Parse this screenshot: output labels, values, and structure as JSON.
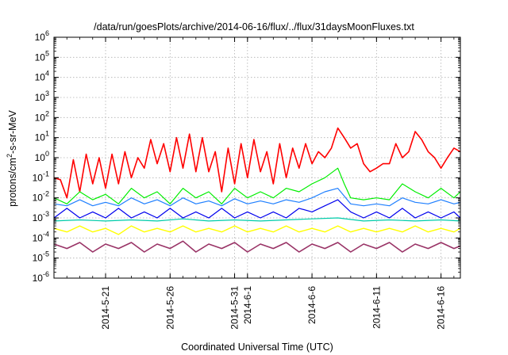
{
  "chart_data": {
    "type": "line",
    "title": "/data/run/goesPlots/archive/2014-06-16/flux/../flux/31daysMoonFluxes.txt",
    "xlabel": "Coordinated Universal Time (UTC)",
    "ylabel_parts": [
      "protons/cm",
      "2",
      "-s-sr-MeV"
    ],
    "yscale": "log",
    "ylim_exp": [
      -6,
      6
    ],
    "y_ticks": [
      {
        "base": "10",
        "exp": "-6"
      },
      {
        "base": "10",
        "exp": "-5"
      },
      {
        "base": "10",
        "exp": "-4"
      },
      {
        "base": "10",
        "exp": "-3"
      },
      {
        "base": "10",
        "exp": "-2"
      },
      {
        "base": "10",
        "exp": "-1"
      },
      {
        "base": "10",
        "exp": "0"
      },
      {
        "base": "10",
        "exp": "1"
      },
      {
        "base": "10",
        "exp": "2"
      },
      {
        "base": "10",
        "exp": "3"
      },
      {
        "base": "10",
        "exp": "4"
      },
      {
        "base": "10",
        "exp": "5"
      },
      {
        "base": "10",
        "exp": "6"
      }
    ],
    "x_domain": [
      "2014-05-17",
      "2014-06-17 12:00"
    ],
    "x_ticks": [
      {
        "date": "2014-05-21",
        "label": "2014-5-21"
      },
      {
        "date": "2014-05-26",
        "label": "2014-5-26"
      },
      {
        "date": "2014-05-31",
        "label": "2014-5-31"
      },
      {
        "date": "2014-06-01",
        "label": "2014-6-1"
      },
      {
        "date": "2014-06-06",
        "label": "2014-6-6"
      },
      {
        "date": "2014-06-11",
        "label": "2014-6-11"
      },
      {
        "date": "2014-06-16",
        "label": "2014-6-16"
      }
    ],
    "grid": true,
    "series": [
      {
        "color": "#ff0000",
        "width": 1.6,
        "points": [
          [
            "2014-05-17",
            0.1
          ],
          [
            "2014-05-17 12:00",
            0.08
          ],
          [
            "2014-05-18",
            0.01
          ],
          [
            "2014-05-18 12:00",
            0.8
          ],
          [
            "2014-05-19",
            0.02
          ],
          [
            "2014-05-19 12:00",
            1.5
          ],
          [
            "2014-05-20",
            0.05
          ],
          [
            "2014-05-20 12:00",
            1.0
          ],
          [
            "2014-05-21",
            0.03
          ],
          [
            "2014-05-21 12:00",
            1.5
          ],
          [
            "2014-05-22",
            0.05
          ],
          [
            "2014-05-22 12:00",
            2.0
          ],
          [
            "2014-05-23",
            0.1
          ],
          [
            "2014-05-23 12:00",
            1.0
          ],
          [
            "2014-05-24",
            0.3
          ],
          [
            "2014-05-24 12:00",
            8.0
          ],
          [
            "2014-05-25",
            0.5
          ],
          [
            "2014-05-25 12:00",
            5.0
          ],
          [
            "2014-05-26",
            0.2
          ],
          [
            "2014-05-26 12:00",
            10.0
          ],
          [
            "2014-05-27",
            0.3
          ],
          [
            "2014-05-27 12:00",
            15.0
          ],
          [
            "2014-05-28",
            0.2
          ],
          [
            "2014-05-28 12:00",
            10.0
          ],
          [
            "2014-05-29",
            0.2
          ],
          [
            "2014-05-29 12:00",
            2.0
          ],
          [
            "2014-05-30",
            0.02
          ],
          [
            "2014-05-30 12:00",
            3.0
          ],
          [
            "2014-05-31",
            0.05
          ],
          [
            "2014-05-31 12:00",
            5.0
          ],
          [
            "2014-06-01",
            0.1
          ],
          [
            "2014-06-01 12:00",
            8.0
          ],
          [
            "2014-06-02",
            0.2
          ],
          [
            "2014-06-02 12:00",
            2.0
          ],
          [
            "2014-06-03",
            0.05
          ],
          [
            "2014-06-03 12:00",
            5.0
          ],
          [
            "2014-06-04",
            0.1
          ],
          [
            "2014-06-04 12:00",
            3.0
          ],
          [
            "2014-06-05",
            0.3
          ],
          [
            "2014-06-05 12:00",
            5.0
          ],
          [
            "2014-06-06",
            0.5
          ],
          [
            "2014-06-06 12:00",
            2.0
          ],
          [
            "2014-06-07",
            1.0
          ],
          [
            "2014-06-07 12:00",
            3.0
          ],
          [
            "2014-06-08",
            30.0
          ],
          [
            "2014-06-08 12:00",
            10.0
          ],
          [
            "2014-06-09",
            3.0
          ],
          [
            "2014-06-09 12:00",
            5.0
          ],
          [
            "2014-06-10",
            0.5
          ],
          [
            "2014-06-10 12:00",
            0.2
          ],
          [
            "2014-06-11",
            0.3
          ],
          [
            "2014-06-11 12:00",
            0.5
          ],
          [
            "2014-06-12",
            0.5
          ],
          [
            "2014-06-12 12:00",
            5.0
          ],
          [
            "2014-06-13",
            1.0
          ],
          [
            "2014-06-13 12:00",
            2.0
          ],
          [
            "2014-06-14",
            20.0
          ],
          [
            "2014-06-14 12:00",
            8.0
          ],
          [
            "2014-06-15",
            2.0
          ],
          [
            "2014-06-15 12:00",
            1.0
          ],
          [
            "2014-06-16",
            0.3
          ],
          [
            "2014-06-16 12:00",
            1.0
          ],
          [
            "2014-06-17",
            3.0
          ],
          [
            "2014-06-17 12:00",
            2.0
          ]
        ]
      },
      {
        "color": "#00ee00",
        "width": 1.2,
        "points": [
          [
            "2014-05-17",
            0.01
          ],
          [
            "2014-05-18",
            0.005
          ],
          [
            "2014-05-19",
            0.02
          ],
          [
            "2014-05-20",
            0.008
          ],
          [
            "2014-05-21",
            0.015
          ],
          [
            "2014-05-22",
            0.005
          ],
          [
            "2014-05-23",
            0.03
          ],
          [
            "2014-05-24",
            0.01
          ],
          [
            "2014-05-25",
            0.02
          ],
          [
            "2014-05-26",
            0.005
          ],
          [
            "2014-05-27",
            0.03
          ],
          [
            "2014-05-28",
            0.01
          ],
          [
            "2014-05-29",
            0.02
          ],
          [
            "2014-05-30",
            0.005
          ],
          [
            "2014-05-31",
            0.03
          ],
          [
            "2014-06-01",
            0.01
          ],
          [
            "2014-06-02",
            0.02
          ],
          [
            "2014-06-03",
            0.01
          ],
          [
            "2014-06-04",
            0.03
          ],
          [
            "2014-06-05",
            0.02
          ],
          [
            "2014-06-06",
            0.05
          ],
          [
            "2014-06-07",
            0.1
          ],
          [
            "2014-06-08",
            0.3
          ],
          [
            "2014-06-08 12:00",
            0.05
          ],
          [
            "2014-06-09",
            0.01
          ],
          [
            "2014-06-10",
            0.008
          ],
          [
            "2014-06-11",
            0.01
          ],
          [
            "2014-06-12",
            0.008
          ],
          [
            "2014-06-13",
            0.05
          ],
          [
            "2014-06-14",
            0.02
          ],
          [
            "2014-06-15",
            0.01
          ],
          [
            "2014-06-16",
            0.03
          ],
          [
            "2014-06-17",
            0.01
          ],
          [
            "2014-06-17 12:00",
            0.02
          ]
        ]
      },
      {
        "color": "#1e7fff",
        "width": 1.2,
        "points": [
          [
            "2014-05-17",
            0.005
          ],
          [
            "2014-05-18",
            0.004
          ],
          [
            "2014-05-19",
            0.008
          ],
          [
            "2014-05-20",
            0.004
          ],
          [
            "2014-05-21",
            0.006
          ],
          [
            "2014-05-22",
            0.004
          ],
          [
            "2014-05-23",
            0.01
          ],
          [
            "2014-05-24",
            0.005
          ],
          [
            "2014-05-25",
            0.008
          ],
          [
            "2014-05-26",
            0.004
          ],
          [
            "2014-05-27",
            0.01
          ],
          [
            "2014-05-28",
            0.005
          ],
          [
            "2014-05-29",
            0.007
          ],
          [
            "2014-05-30",
            0.004
          ],
          [
            "2014-05-31",
            0.009
          ],
          [
            "2014-06-01",
            0.005
          ],
          [
            "2014-06-02",
            0.007
          ],
          [
            "2014-06-03",
            0.005
          ],
          [
            "2014-06-04",
            0.008
          ],
          [
            "2014-06-05",
            0.006
          ],
          [
            "2014-06-06",
            0.01
          ],
          [
            "2014-06-07",
            0.02
          ],
          [
            "2014-06-08",
            0.03
          ],
          [
            "2014-06-09",
            0.005
          ],
          [
            "2014-06-10",
            0.004
          ],
          [
            "2014-06-11",
            0.005
          ],
          [
            "2014-06-12",
            0.004
          ],
          [
            "2014-06-13",
            0.01
          ],
          [
            "2014-06-14",
            0.006
          ],
          [
            "2014-06-15",
            0.005
          ],
          [
            "2014-06-16",
            0.008
          ],
          [
            "2014-06-17",
            0.005
          ],
          [
            "2014-06-17 12:00",
            0.006
          ]
        ]
      },
      {
        "color": "#0000ee",
        "width": 1.2,
        "points": [
          [
            "2014-05-17",
            0.001
          ],
          [
            "2014-05-18",
            0.003
          ],
          [
            "2014-05-19",
            0.001
          ],
          [
            "2014-05-20",
            0.002
          ],
          [
            "2014-05-21",
            0.001
          ],
          [
            "2014-05-22",
            0.003
          ],
          [
            "2014-05-23",
            0.001
          ],
          [
            "2014-05-24",
            0.002
          ],
          [
            "2014-05-25",
            0.001
          ],
          [
            "2014-05-26",
            0.003
          ],
          [
            "2014-05-27",
            0.001
          ],
          [
            "2014-05-28",
            0.002
          ],
          [
            "2014-05-29",
            0.001
          ],
          [
            "2014-05-30",
            0.003
          ],
          [
            "2014-05-31",
            0.001
          ],
          [
            "2014-06-01",
            0.002
          ],
          [
            "2014-06-02",
            0.001
          ],
          [
            "2014-06-03",
            0.002
          ],
          [
            "2014-06-04",
            0.001
          ],
          [
            "2014-06-05",
            0.003
          ],
          [
            "2014-06-06",
            0.002
          ],
          [
            "2014-06-07",
            0.004
          ],
          [
            "2014-06-08",
            0.008
          ],
          [
            "2014-06-09",
            0.002
          ],
          [
            "2014-06-10",
            0.001
          ],
          [
            "2014-06-11",
            0.002
          ],
          [
            "2014-06-12",
            0.001
          ],
          [
            "2014-06-13",
            0.003
          ],
          [
            "2014-06-14",
            0.001
          ],
          [
            "2014-06-15",
            0.002
          ],
          [
            "2014-06-16",
            0.001
          ],
          [
            "2014-06-17",
            0.002
          ],
          [
            "2014-06-17 12:00",
            0.001
          ]
        ]
      },
      {
        "color": "#00ccaa",
        "width": 1.2,
        "points": [
          [
            "2014-05-17",
            0.0007
          ],
          [
            "2014-05-19",
            0.0008
          ],
          [
            "2014-05-21",
            0.0007
          ],
          [
            "2014-05-23",
            0.0008
          ],
          [
            "2014-05-25",
            0.0007
          ],
          [
            "2014-05-27",
            0.0009
          ],
          [
            "2014-05-29",
            0.0007
          ],
          [
            "2014-05-31",
            0.0008
          ],
          [
            "2014-06-02",
            0.0007
          ],
          [
            "2014-06-04",
            0.0008
          ],
          [
            "2014-06-06",
            0.0009
          ],
          [
            "2014-06-08",
            0.001
          ],
          [
            "2014-06-10",
            0.0007
          ],
          [
            "2014-06-12",
            0.0008
          ],
          [
            "2014-06-14",
            0.0007
          ],
          [
            "2014-06-16",
            0.0008
          ],
          [
            "2014-06-17 12:00",
            0.0007
          ]
        ]
      },
      {
        "color": "#ffff00",
        "width": 1.4,
        "points": [
          [
            "2014-05-17",
            0.0003
          ],
          [
            "2014-05-18",
            0.0002
          ],
          [
            "2014-05-19",
            0.0004
          ],
          [
            "2014-05-20",
            0.0002
          ],
          [
            "2014-05-21",
            0.0003
          ],
          [
            "2014-05-22",
            0.00015
          ],
          [
            "2014-05-23",
            0.0004
          ],
          [
            "2014-05-24",
            0.0002
          ],
          [
            "2014-05-25",
            0.0003
          ],
          [
            "2014-05-26",
            0.0002
          ],
          [
            "2014-05-27",
            0.0004
          ],
          [
            "2014-05-28",
            0.0002
          ],
          [
            "2014-05-29",
            0.0003
          ],
          [
            "2014-05-30",
            0.0002
          ],
          [
            "2014-05-31",
            0.0004
          ],
          [
            "2014-06-01",
            0.0002
          ],
          [
            "2014-06-02",
            0.0003
          ],
          [
            "2014-06-03",
            0.0002
          ],
          [
            "2014-06-04",
            0.0004
          ],
          [
            "2014-06-05",
            0.0002
          ],
          [
            "2014-06-06",
            0.0003
          ],
          [
            "2014-06-07",
            0.0002
          ],
          [
            "2014-06-08",
            0.0004
          ],
          [
            "2014-06-09",
            0.0002
          ],
          [
            "2014-06-10",
            0.0003
          ],
          [
            "2014-06-11",
            0.0002
          ],
          [
            "2014-06-12",
            0.0003
          ],
          [
            "2014-06-13",
            0.0002
          ],
          [
            "2014-06-14",
            0.0004
          ],
          [
            "2014-06-15",
            0.0002
          ],
          [
            "2014-06-16",
            0.0003
          ],
          [
            "2014-06-17",
            0.0002
          ],
          [
            "2014-06-17 12:00",
            0.0003
          ]
        ]
      },
      {
        "color": "#993366",
        "width": 1.6,
        "points": [
          [
            "2014-05-17",
            5e-05
          ],
          [
            "2014-05-18",
            3e-05
          ],
          [
            "2014-05-19",
            6e-05
          ],
          [
            "2014-05-20",
            2e-05
          ],
          [
            "2014-05-21",
            5e-05
          ],
          [
            "2014-05-22",
            3e-05
          ],
          [
            "2014-05-23",
            6e-05
          ],
          [
            "2014-05-24",
            2e-05
          ],
          [
            "2014-05-25",
            5e-05
          ],
          [
            "2014-05-26",
            3e-05
          ],
          [
            "2014-05-27",
            7e-05
          ],
          [
            "2014-05-28",
            2e-05
          ],
          [
            "2014-05-29",
            5e-05
          ],
          [
            "2014-05-30",
            3e-05
          ],
          [
            "2014-05-31",
            6e-05
          ],
          [
            "2014-06-01",
            2e-05
          ],
          [
            "2014-06-02",
            5e-05
          ],
          [
            "2014-06-03",
            3e-05
          ],
          [
            "2014-06-04",
            6e-05
          ],
          [
            "2014-06-05",
            2e-05
          ],
          [
            "2014-06-06",
            5e-05
          ],
          [
            "2014-06-07",
            3e-05
          ],
          [
            "2014-06-08",
            6e-05
          ],
          [
            "2014-06-09",
            2e-05
          ],
          [
            "2014-06-10",
            5e-05
          ],
          [
            "2014-06-11",
            3e-05
          ],
          [
            "2014-06-12",
            6e-05
          ],
          [
            "2014-06-13",
            2e-05
          ],
          [
            "2014-06-14",
            5e-05
          ],
          [
            "2014-06-15",
            3e-05
          ],
          [
            "2014-06-16",
            6e-05
          ],
          [
            "2014-06-17",
            3e-05
          ],
          [
            "2014-06-17 12:00",
            4e-05
          ]
        ]
      }
    ]
  }
}
